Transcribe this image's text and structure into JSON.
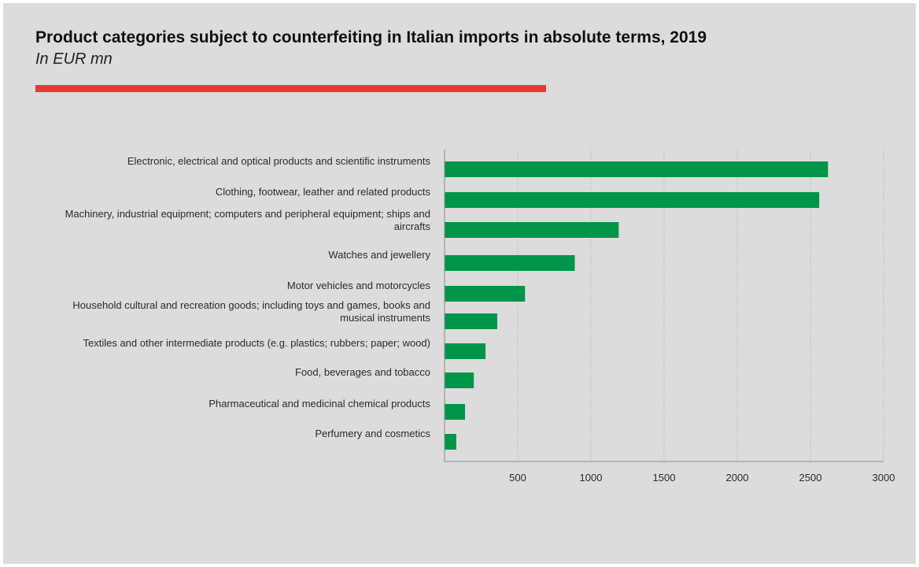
{
  "page": {
    "title": "Product categories subject to counterfeiting in Italian imports in absolute terms, 2019",
    "subtitle": "In EUR mn"
  },
  "colors": {
    "background": "#dcdcdd",
    "accent": "#e63b33",
    "bar": "#009549",
    "axis": "#8a8a8a",
    "grid": "#a8a8a8"
  },
  "chart_data": {
    "type": "bar",
    "orientation": "horizontal",
    "title": "Product categories subject to counterfeiting in Italian imports in absolute terms, 2019",
    "subtitle": "In EUR mn",
    "categories": [
      [
        "Electronic, electrical and optical products and scientific instruments"
      ],
      [
        "Clothing, footwear, leather and related products"
      ],
      [
        "Machinery, industrial equipment; computers and peripheral equipment; ships and",
        "aircrafts"
      ],
      [
        "Watches and jewellery"
      ],
      [
        "Motor vehicles and motorcycles"
      ],
      [
        "Household cultural and recreation goods;  including toys and games, books and",
        "musical instruments"
      ],
      [
        "Textiles and other intermediate products (e.g. plastics; rubbers; paper; wood)"
      ],
      [
        "Food, beverages and tobacco"
      ],
      [
        "Pharmaceutical and medicinal chemical products"
      ],
      [
        "Perfumery and cosmetics"
      ]
    ],
    "values": [
      2620,
      2560,
      1190,
      890,
      550,
      360,
      280,
      200,
      140,
      80
    ],
    "xlim": [
      0,
      3000
    ],
    "xticks": [
      500,
      1000,
      1500,
      2000,
      2500,
      3000
    ],
    "grid": "vertical dotted",
    "legend": "none"
  }
}
